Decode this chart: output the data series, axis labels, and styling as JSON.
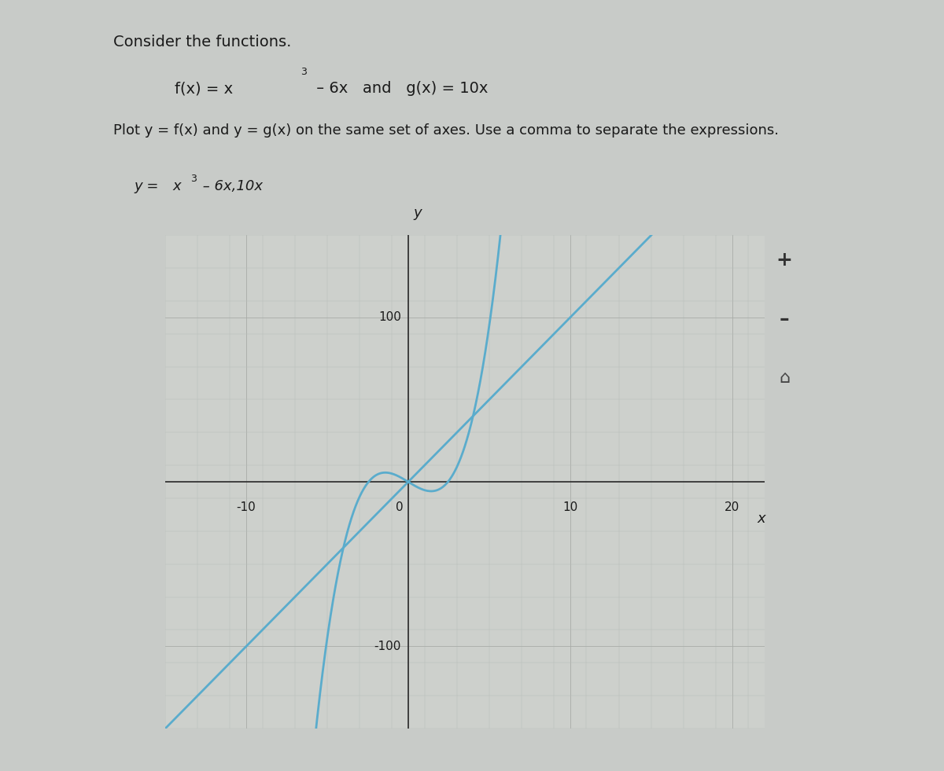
{
  "title_text": "Consider the functions.",
  "func_line": "f(x) = x³ – 6x   and   g(x) = 10x",
  "plot_instruction": "Plot y = f(x) and y = g(x) on the same set of axes. Use a comma to separate the expressions.",
  "input_label": "y =",
  "input_value": "x³ – 6x,10x",
  "xlim": [
    -15,
    22
  ],
  "ylim": [
    -150,
    150
  ],
  "xticks": [
    -10,
    0,
    10,
    20
  ],
  "yticks": [
    -100,
    0,
    100
  ],
  "xlabel": "x",
  "ylabel": "y",
  "curve_color": "#5aaccc",
  "line_width": 2.0,
  "bg_color": "#cdd0cc",
  "outer_bg": "#c8cbc8",
  "grid_minor_color": "#b8bcb8",
  "grid_major_color": "#a8aca8",
  "axis_color": "#2a2a2a",
  "text_color": "#1a1a1a",
  "input_box_bg": "#ffffff",
  "input_box_border": "#999999",
  "panel_bg": "#c0c3c0",
  "right_panel_bg": "#b8bbb8"
}
